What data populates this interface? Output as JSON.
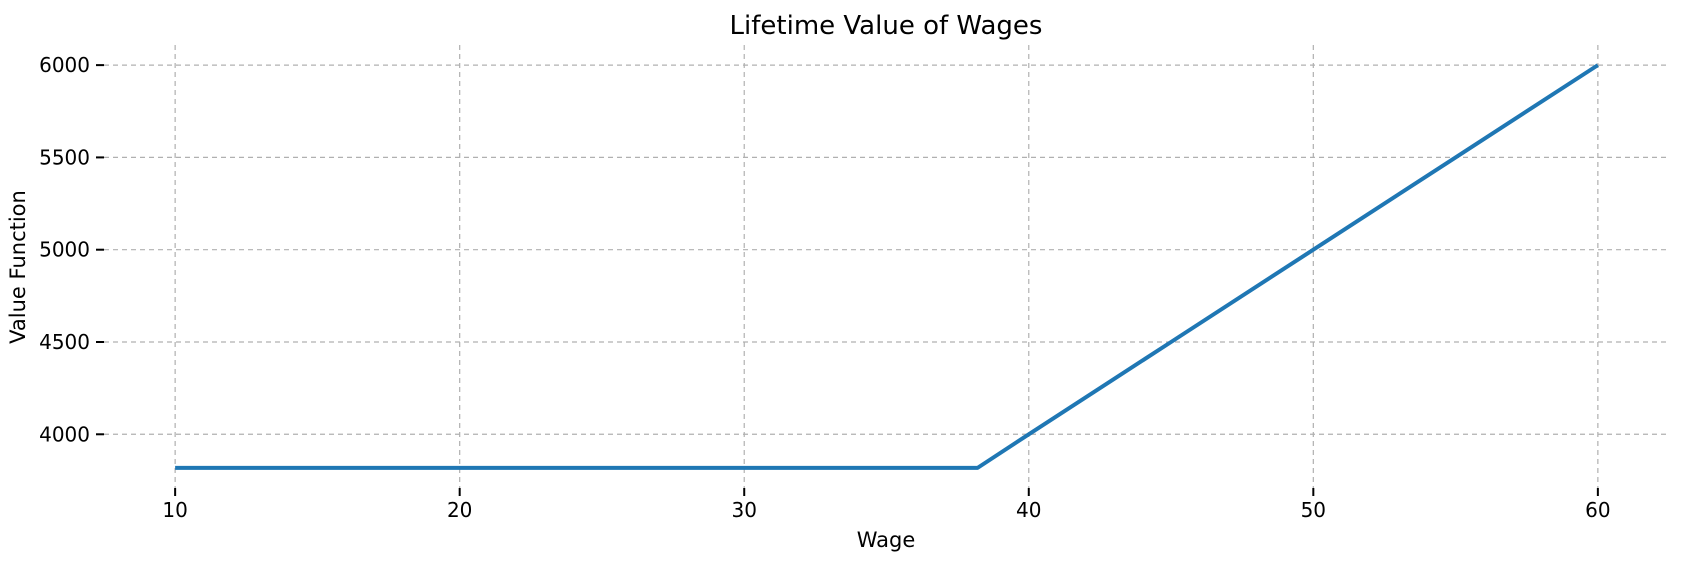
{
  "figure": {
    "background": "#ffffff",
    "text_color": "#000000"
  },
  "chart_data": {
    "type": "line",
    "title": "Lifetime Value of Wages",
    "xlabel": "Wage",
    "ylabel": "Value Function",
    "x_ticks": [
      10,
      20,
      30,
      40,
      50,
      60
    ],
    "y_ticks": [
      4000,
      4500,
      5000,
      5500,
      6000
    ],
    "xlim": [
      7.5,
      62.5
    ],
    "ylim": [
      3709,
      6109
    ],
    "grid": {
      "visible": true,
      "axes": "both",
      "style": "dashed",
      "color": "#b0b0b0"
    },
    "legend": "none",
    "series": [
      {
        "name": "Value Function",
        "color": "#1f77b4",
        "line_width": 4,
        "points": [
          [
            10,
            3818
          ],
          [
            38.2,
            3818
          ],
          [
            40,
            4000
          ],
          [
            45,
            4500
          ],
          [
            50,
            5000
          ],
          [
            55,
            5500
          ],
          [
            60,
            6000
          ]
        ]
      }
    ]
  }
}
